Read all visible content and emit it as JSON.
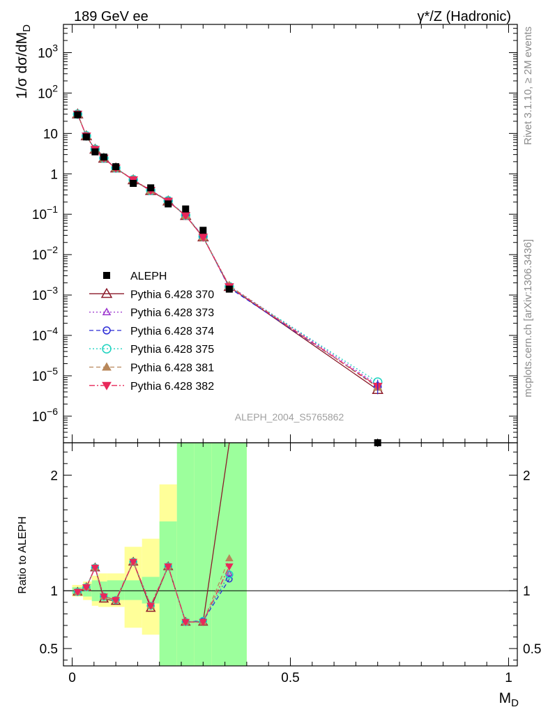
{
  "header": {
    "left": "189 GeV ee",
    "right": "γ*/Z (Hadronic)"
  },
  "side_text": {
    "rivet": "Rivet 3.1.10, ≥ 2M events",
    "mcplots": "mcplots.cern.ch [arXiv:1306.3436]"
  },
  "watermark": "ALEPH_2004_S5765862",
  "colors": {
    "data": "#000000",
    "p370": "#8b1a2a",
    "p373": "#9a32cd",
    "p374": "#2b2bd6",
    "p375": "#1fd3c0",
    "p381": "#b8875a",
    "p382": "#e8285a",
    "band_inner": "#9cff9c",
    "band_outer": "#ffff99"
  },
  "chart_data": [
    {
      "type": "line",
      "title": "",
      "xlabel": "",
      "ylabel": "1/σ dσ/dM_D",
      "ylabel_parts": {
        "pre": "1/σ  dσ/dM",
        "sub": "D"
      },
      "yscale": "log",
      "ylim": [
        2.2e-07,
        5000
      ],
      "xlim": [
        -0.02,
        1.02
      ],
      "yticks": [
        {
          "v": 1e-06,
          "base": "10",
          "exp": "−6"
        },
        {
          "v": 1e-05,
          "base": "10",
          "exp": "−5"
        },
        {
          "v": 0.0001,
          "base": "10",
          "exp": "−4"
        },
        {
          "v": 0.001,
          "base": "10",
          "exp": "−3"
        },
        {
          "v": 0.01,
          "base": "10",
          "exp": "−2"
        },
        {
          "v": 0.1,
          "base": "10",
          "exp": "−1"
        },
        {
          "v": 1,
          "base": "1",
          "exp": ""
        },
        {
          "v": 10,
          "base": "10",
          "exp": ""
        },
        {
          "v": 100,
          "base": "10",
          "exp": "2"
        },
        {
          "v": 1000,
          "base": "10",
          "exp": "3"
        }
      ],
      "x": [
        0.0125,
        0.0325,
        0.0525,
        0.0725,
        0.1,
        0.14,
        0.18,
        0.22,
        0.26,
        0.3,
        0.36,
        0.7
      ],
      "data_series": {
        "name": "ALEPH",
        "values": [
          29,
          8.2,
          3.5,
          2.6,
          1.5,
          0.58,
          0.45,
          0.18,
          0.135,
          0.04,
          0.0014,
          2.2e-07
        ]
      },
      "series": [
        {
          "name": "Pythia 6.428 370",
          "values": [
            30,
            8.6,
            4.0,
            2.4,
            1.38,
            0.7,
            0.38,
            0.21,
            0.092,
            0.027,
            0.0016,
            4.5e-06
          ]
        },
        {
          "name": "Pythia 6.428 373",
          "values": [
            30,
            8.6,
            4.0,
            2.45,
            1.39,
            0.71,
            0.39,
            0.21,
            0.093,
            0.028,
            0.0017,
            6e-06
          ]
        },
        {
          "name": "Pythia 6.428 374",
          "values": [
            30,
            8.6,
            4.05,
            2.45,
            1.4,
            0.71,
            0.39,
            0.215,
            0.094,
            0.028,
            0.0015,
            5.5e-06
          ]
        },
        {
          "name": "Pythia 6.428 375",
          "values": [
            30,
            8.7,
            4.05,
            2.45,
            1.4,
            0.71,
            0.39,
            0.215,
            0.094,
            0.028,
            0.0016,
            7e-06
          ]
        },
        {
          "name": "Pythia 6.428 381",
          "values": [
            30,
            8.6,
            4.0,
            2.45,
            1.39,
            0.71,
            0.39,
            0.21,
            0.093,
            0.027,
            0.0017,
            5.2e-06
          ]
        },
        {
          "name": "Pythia 6.428 382",
          "values": [
            30,
            8.6,
            4.0,
            2.45,
            1.39,
            0.71,
            0.39,
            0.21,
            0.093,
            0.027,
            0.0016,
            5.5e-06
          ]
        }
      ]
    },
    {
      "type": "line",
      "title": "",
      "xlabel": "M_D",
      "xlabel_parts": {
        "pre": "M",
        "sub": "D"
      },
      "ylabel": "Ratio to ALEPH",
      "ylim": [
        0.35,
        2.28
      ],
      "xlim": [
        -0.02,
        1.02
      ],
      "yticks": [
        {
          "v": 0.5,
          "label": "0.5"
        },
        {
          "v": 1,
          "label": "1"
        },
        {
          "v": 2,
          "label": "2"
        }
      ],
      "xticks": [
        {
          "v": 0,
          "label": "0"
        },
        {
          "v": 0.5,
          "label": "0.5"
        },
        {
          "v": 1,
          "label": "1"
        }
      ],
      "x": [
        0.0125,
        0.0325,
        0.0525,
        0.0725,
        0.1,
        0.14,
        0.18,
        0.22,
        0.26,
        0.3,
        0.36
      ],
      "bands": {
        "edges": [
          0,
          0.025,
          0.045,
          0.06,
          0.08,
          0.12,
          0.16,
          0.2,
          0.24,
          0.28,
          0.32,
          0.4
        ],
        "inner": [
          [
            0.97,
            1.03
          ],
          [
            0.95,
            1.06
          ],
          [
            0.91,
            1.09
          ],
          [
            0.91,
            1.08
          ],
          [
            0.92,
            1.09
          ],
          [
            0.92,
            1.09
          ],
          [
            0.89,
            1.12
          ],
          [
            0.35,
            1.6
          ],
          [
            0.35,
            2.28
          ],
          [
            0.35,
            2.28
          ],
          [
            0.35,
            2.28
          ]
        ],
        "outer": [
          [
            0.95,
            1.05
          ],
          [
            0.92,
            1.08
          ],
          [
            0.87,
            1.13
          ],
          [
            0.86,
            1.15
          ],
          [
            0.86,
            1.15
          ],
          [
            0.68,
            1.38
          ],
          [
            0.62,
            1.45
          ],
          [
            0.35,
            1.92
          ],
          [
            0.35,
            1.92
          ],
          [
            0.35,
            2.28
          ],
          [
            0.35,
            2.28
          ]
        ]
      },
      "series": [
        {
          "name": "Pythia 6.428 370",
          "values": [
            0.99,
            1.03,
            1.2,
            0.93,
            0.91,
            1.25,
            0.85,
            1.21,
            0.73,
            0.73,
            2.3
          ]
        },
        {
          "name": "Pythia 6.428 373",
          "values": [
            0.99,
            1.03,
            1.2,
            0.95,
            0.92,
            1.25,
            0.87,
            1.21,
            0.73,
            0.74,
            1.15
          ]
        },
        {
          "name": "Pythia 6.428 374",
          "values": [
            0.99,
            1.03,
            1.2,
            0.95,
            0.92,
            1.25,
            0.87,
            1.21,
            0.73,
            0.74,
            1.1
          ]
        },
        {
          "name": "Pythia 6.428 375",
          "values": [
            0.99,
            1.03,
            1.2,
            0.95,
            0.92,
            1.25,
            0.87,
            1.21,
            0.73,
            0.74,
            1.14
          ]
        },
        {
          "name": "Pythia 6.428 381",
          "values": [
            0.99,
            1.03,
            1.2,
            0.95,
            0.92,
            1.25,
            0.87,
            1.21,
            0.73,
            0.73,
            1.28
          ]
        },
        {
          "name": "Pythia 6.428 382",
          "values": [
            0.99,
            1.03,
            1.2,
            0.95,
            0.92,
            1.25,
            0.87,
            1.21,
            0.73,
            0.73,
            1.21
          ]
        }
      ]
    }
  ]
}
